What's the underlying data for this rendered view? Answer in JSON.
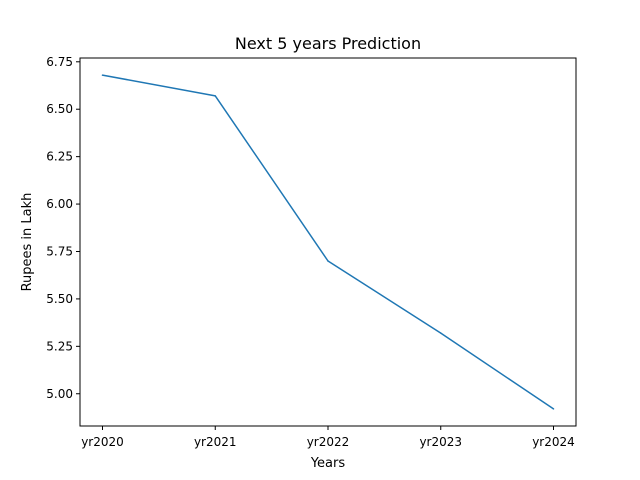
{
  "chart_data": {
    "type": "line",
    "title": "Next 5 years Prediction",
    "xlabel": "Years",
    "ylabel": "Rupees in Lakh",
    "categories": [
      "yr2020",
      "yr2021",
      "yr2022",
      "yr2023",
      "yr2024"
    ],
    "series": [
      {
        "values": [
          6.68,
          6.57,
          5.7,
          5.32,
          4.92
        ],
        "color": "#1f77b4"
      }
    ],
    "ylim": [
      4.83,
      6.77
    ],
    "yticks": [
      "5.00",
      "5.25",
      "5.50",
      "5.75",
      "6.00",
      "6.25",
      "6.50",
      "6.75"
    ],
    "grid": false,
    "legend": "none"
  }
}
